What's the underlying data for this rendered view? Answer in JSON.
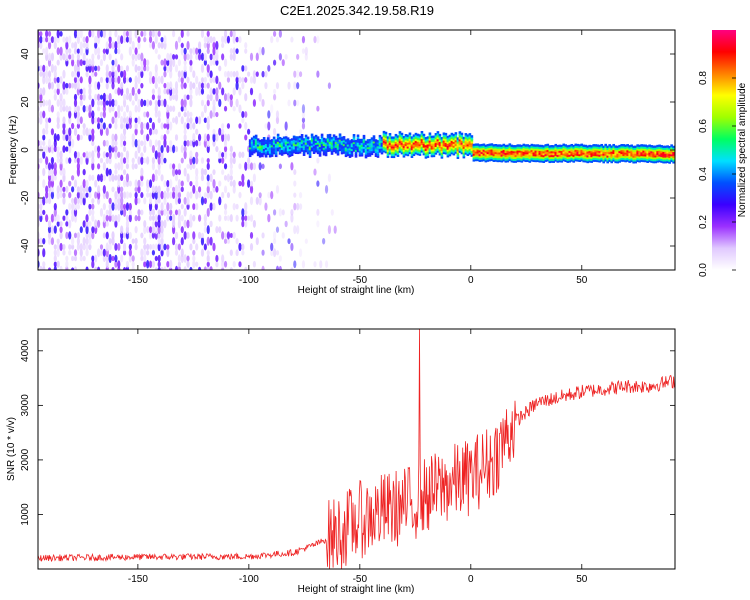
{
  "figure_title": "C2E1.2025.342.19.58.R19",
  "chart_data": [
    {
      "type": "heatmap",
      "title": "C2E1.2025.342.19.58.R19",
      "xlabel": "Height of straight line (km)",
      "ylabel": "Frequency (Hz)",
      "xlim": [
        -195,
        92
      ],
      "ylim": [
        -50,
        50
      ],
      "xticks": [
        -150,
        -100,
        -50,
        0,
        50
      ],
      "yticks": [
        -40,
        -20,
        0,
        20,
        40
      ],
      "colorbar": {
        "label": "Normalized spectral amplitude",
        "range": [
          0,
          1
        ],
        "ticks": [
          "0.0",
          "0.2",
          "0.4",
          "0.6",
          "0.8"
        ],
        "colormap": [
          "#ffffff",
          "#e0c8ff",
          "#9b30ff",
          "#3a00ff",
          "#0050ff",
          "#00e0ff",
          "#00ff60",
          "#a0ff00",
          "#ffff00",
          "#ff8000",
          "#ff0000",
          "#ff0080"
        ]
      },
      "features": [
        {
          "name": "scattered noise",
          "x_range": [
            -195,
            -60
          ],
          "freq_range": [
            -50,
            50
          ],
          "amplitude": 0.05
        },
        {
          "name": "signal band",
          "x_range": [
            -100,
            92
          ],
          "freq_center": 0,
          "freq_halfwidth": 3,
          "peak_amplitude": 0.95
        }
      ]
    },
    {
      "type": "line",
      "xlabel": "Height of straight line (km)",
      "ylabel": "SNR (10 * v/v)",
      "xlim": [
        -195,
        92
      ],
      "ylim": [
        0,
        4400
      ],
      "xticks": [
        -150,
        -100,
        -50,
        0,
        50
      ],
      "yticks": [
        1000,
        2000,
        3000,
        4000
      ],
      "series": [
        {
          "name": "SNR",
          "color": "#ee2222",
          "x": [
            -195,
            -150,
            -100,
            -80,
            -70,
            -60,
            -50,
            -40,
            -30,
            -20,
            -10,
            0,
            10,
            20,
            30,
            40,
            50,
            60,
            70,
            80,
            92
          ],
          "values": [
            200,
            220,
            230,
            300,
            450,
            650,
            900,
            1050,
            1150,
            1350,
            1550,
            1700,
            2000,
            2700,
            3050,
            3150,
            3250,
            3300,
            3350,
            3350,
            3450
          ]
        }
      ],
      "spike": {
        "x": -23,
        "value": 4400
      }
    }
  ]
}
